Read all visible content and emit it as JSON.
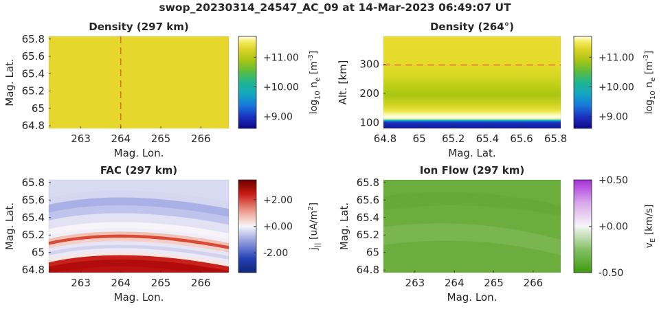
{
  "figure": {
    "title": "swop_20230314_24547_AC_09 at 14-Mar-2023 06:49:07 UT"
  },
  "chart_data": [
    {
      "id": "density_map",
      "type": "heatmap",
      "title": "Density (297 km)",
      "xlabel": "Mag. Lon.",
      "ylabel": "Mag. Lat.",
      "xlim": [
        262.2,
        266.7
      ],
      "ylim": [
        64.77,
        65.83
      ],
      "xticks": [
        263,
        264,
        265,
        266
      ],
      "xtick_labels": [
        "263",
        "264",
        "265",
        "266"
      ],
      "yticks": [
        64.8,
        65.0,
        65.2,
        65.4,
        65.6,
        65.8
      ],
      "ytick_labels": [
        "64.8",
        "65",
        "65.2",
        "65.4",
        "65.6",
        "65.8"
      ],
      "field_color": "#e6d72c",
      "marker_line": {
        "axis": "x",
        "value": 264.0,
        "color": "#e8352a",
        "dashed": true
      },
      "colorbar": {
        "label": "log10 n_e [m^-3]",
        "label_parts": [
          "log",
          "10",
          " n",
          "e",
          " [m",
          "-3",
          "]"
        ],
        "range": [
          8.6,
          11.7
        ],
        "ticks": [
          9.0,
          10.0,
          11.0
        ],
        "tick_labels": [
          "+9.00",
          "+10.00",
          "+11.00"
        ],
        "colormap": "parula"
      }
    },
    {
      "id": "density_profile",
      "type": "heatmap",
      "title": "Density (264°)",
      "xlabel": "Mag. Lat.",
      "ylabel": "Alt. [km]",
      "xlim": [
        64.79,
        65.83
      ],
      "ylim": [
        80,
        395
      ],
      "xticks": [
        64.8,
        65.0,
        65.2,
        65.4,
        65.6,
        65.8
      ],
      "xtick_labels": [
        "64.8",
        "65",
        "65.2",
        "65.4",
        "65.6",
        "65.8"
      ],
      "yticks": [
        100,
        200,
        300
      ],
      "ytick_labels": [
        "100",
        "200",
        "300"
      ],
      "altitude_profile": [
        {
          "alt": 80,
          "color": "#0d1a9c"
        },
        {
          "alt": 98,
          "color": "#1a2cb8"
        },
        {
          "alt": 104,
          "color": "#1565d6"
        },
        {
          "alt": 108,
          "color": "#16c4c0"
        },
        {
          "alt": 113,
          "color": "#f6f4a0"
        },
        {
          "alt": 120,
          "color": "#fffdf2"
        },
        {
          "alt": 128,
          "color": "#fbfa9c"
        },
        {
          "alt": 143,
          "color": "#e6e03a"
        },
        {
          "alt": 165,
          "color": "#c9d21c"
        },
        {
          "alt": 195,
          "color": "#a8c612"
        },
        {
          "alt": 228,
          "color": "#bed015"
        },
        {
          "alt": 262,
          "color": "#d8d722"
        },
        {
          "alt": 300,
          "color": "#e4db2a"
        },
        {
          "alt": 395,
          "color": "#e8db2f"
        }
      ],
      "marker_line": {
        "axis": "y",
        "value": 297,
        "color": "#e8352a",
        "dashed": true
      },
      "colorbar": {
        "label": "log10 n_e [m^-3]",
        "label_parts": [
          "log",
          "10",
          " n",
          "e",
          " [m",
          "-3",
          "]"
        ],
        "range": [
          8.6,
          11.7
        ],
        "ticks": [
          9.0,
          10.0,
          11.0
        ],
        "tick_labels": [
          "+9.00",
          "+10.00",
          "+11.00"
        ],
        "colormap": "parula"
      }
    },
    {
      "id": "fac_map",
      "type": "heatmap",
      "title": "FAC (297 km)",
      "xlabel": "Mag. Lon.",
      "ylabel": "Mag. Lat.",
      "xlim": [
        262.2,
        266.7
      ],
      "ylim": [
        64.77,
        65.83
      ],
      "xticks": [
        263,
        264,
        265,
        266
      ],
      "xtick_labels": [
        "263",
        "264",
        "265",
        "266"
      ],
      "yticks": [
        64.8,
        65.0,
        65.2,
        65.4,
        65.6,
        65.8
      ],
      "ytick_labels": [
        "64.8",
        "65",
        "65.2",
        "65.4",
        "65.6",
        "65.8"
      ],
      "lat_profile_at_264": [
        {
          "lat": 64.77,
          "color": "#c23a2a"
        },
        {
          "lat": 64.85,
          "color": "#b81212"
        },
        {
          "lat": 64.93,
          "color": "#b00c0c"
        },
        {
          "lat": 64.98,
          "color": "#c8201a"
        },
        {
          "lat": 65.02,
          "color": "#f7e6e2"
        },
        {
          "lat": 65.06,
          "color": "#eceaf6"
        },
        {
          "lat": 65.1,
          "color": "#d2d2ee"
        },
        {
          "lat": 65.14,
          "color": "#e8e6f4"
        },
        {
          "lat": 65.18,
          "color": "#f3cfc8"
        },
        {
          "lat": 65.215,
          "color": "#d94a35"
        },
        {
          "lat": 65.25,
          "color": "#f0c2b6"
        },
        {
          "lat": 65.29,
          "color": "#f0eef6"
        },
        {
          "lat": 65.36,
          "color": "#f6f4f8"
        },
        {
          "lat": 65.46,
          "color": "#e2e2f4"
        },
        {
          "lat": 65.55,
          "color": "#bfc4ec"
        },
        {
          "lat": 65.64,
          "color": "#a9b0e6"
        },
        {
          "lat": 65.72,
          "color": "#d5d7f1"
        },
        {
          "lat": 65.83,
          "color": "#d9dbf3"
        }
      ],
      "band_arc_lat_offset": 0.1,
      "colorbar": {
        "label": "j_|| [uA/m^2]",
        "label_parts": [
          "j",
          "||",
          " [uA/m",
          "2",
          "]"
        ],
        "range": [
          -3.5,
          3.5
        ],
        "ticks": [
          -2.0,
          0.0,
          2.0
        ],
        "tick_labels": [
          "-2.00",
          "+0.00",
          "+2.00"
        ],
        "colormap": "diverging-red-blue"
      }
    },
    {
      "id": "ion_flow_map",
      "type": "heatmap",
      "title": "Ion Flow (297 km)",
      "xlabel": "Mag. Lon.",
      "ylabel": "Mag. Lat.",
      "xlim": [
        262.2,
        266.7
      ],
      "ylim": [
        64.77,
        65.83
      ],
      "xticks": [
        263,
        264,
        265,
        266
      ],
      "xtick_labels": [
        "263",
        "264",
        "265",
        "266"
      ],
      "yticks": [
        64.8,
        65.0,
        65.2,
        65.4,
        65.6,
        65.8
      ],
      "ytick_labels": [
        "64.8",
        "65",
        "65.2",
        "65.4",
        "65.6",
        "65.8"
      ],
      "field_color": "#6bae3e",
      "colorbar": {
        "label": "v_E [km/s]",
        "label_parts": [
          "v",
          "E",
          " [km/s]"
        ],
        "range": [
          -0.5,
          0.5
        ],
        "ticks": [
          -0.5,
          0.0,
          0.5
        ],
        "tick_labels": [
          "-0.50",
          "+0.00",
          "+0.50"
        ],
        "colormap": "diverging-green-purple"
      }
    }
  ]
}
